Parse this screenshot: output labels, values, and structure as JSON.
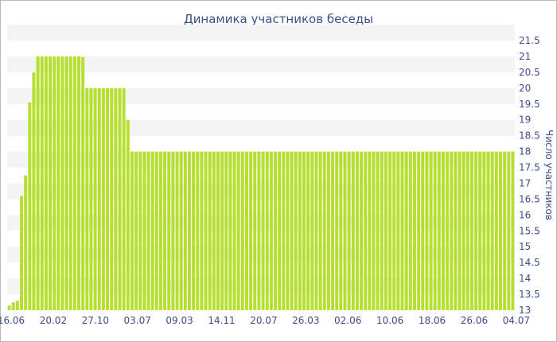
{
  "chart_data": {
    "type": "bar",
    "title": "Динамика участников беседы",
    "xlabel": "",
    "ylabel": "Число участников",
    "ylim": [
      13,
      21.5
    ],
    "ytick_step": 0.5,
    "yaxis_position": "right",
    "grid": "alternating horizontal bands",
    "legend": "none",
    "colors": {
      "bar": "#b5e02f",
      "band": "#f4f4f4",
      "text": "#3d4f8a",
      "border": "#b8b8b8"
    },
    "x_tick_labels": [
      "16.06",
      "20.02",
      "27.10",
      "03.07",
      "09.03",
      "14.11",
      "20.07",
      "26.03",
      "02.06",
      "10.06",
      "18.06",
      "26.06",
      "04.07"
    ],
    "values": [
      13.15,
      13.25,
      13.3,
      16.6,
      17.25,
      19.55,
      20.5,
      21,
      21,
      21,
      21,
      21,
      21,
      21,
      21,
      21,
      21,
      21,
      20.98,
      20,
      20,
      20,
      20,
      20,
      20,
      20,
      20,
      20,
      20,
      19,
      18,
      18,
      18,
      18,
      18,
      18,
      18,
      18,
      18,
      18,
      18,
      18,
      18,
      18,
      18,
      18,
      18,
      18,
      18,
      18,
      18,
      18,
      18,
      18,
      18,
      18,
      18,
      18,
      18,
      18,
      18,
      18,
      18,
      18,
      18,
      18,
      18,
      18,
      18,
      18,
      18,
      18,
      18,
      18,
      18,
      18,
      18,
      18,
      18,
      18,
      18,
      18,
      18,
      18,
      18,
      18,
      18,
      18,
      18,
      18,
      18,
      18,
      18,
      18,
      18,
      18,
      18,
      18,
      18,
      18,
      18,
      18,
      18,
      18,
      18,
      18,
      18,
      18,
      18,
      18,
      18,
      18,
      18,
      18,
      18,
      18,
      18,
      18,
      18,
      18,
      18,
      18,
      18,
      18
    ]
  }
}
